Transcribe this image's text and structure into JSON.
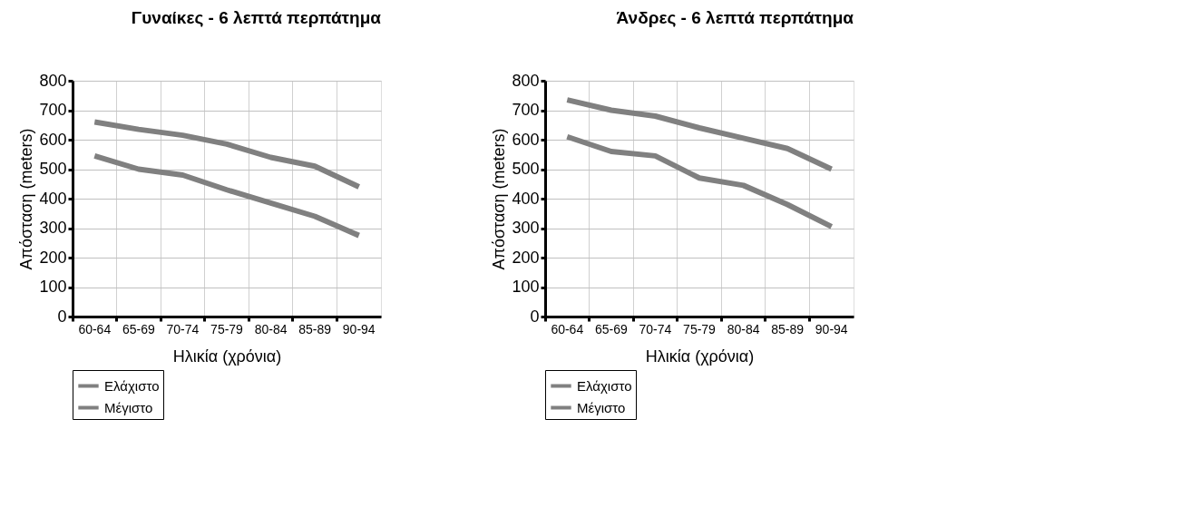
{
  "chart_data": [
    {
      "type": "line",
      "title": "Γυναίκες - 6 λεπτά περπάτημα",
      "xlabel": "Ηλικία (χρόνια)",
      "ylabel": "Απόσταση (meters)",
      "categories": [
        "60-64",
        "65-69",
        "70-74",
        "75-79",
        "80-84",
        "85-89",
        "90-94"
      ],
      "series": [
        {
          "name": "Ελάχιστο",
          "color": "#808080",
          "values": [
            545,
            500,
            480,
            430,
            385,
            340,
            275
          ]
        },
        {
          "name": "Μέγιστο",
          "color": "#808080",
          "values": [
            660,
            635,
            615,
            585,
            540,
            510,
            440
          ]
        }
      ],
      "ylim": [
        0,
        800
      ],
      "yticks": [
        0,
        100,
        200,
        300,
        400,
        500,
        600,
        700,
        800
      ],
      "grid": true,
      "legend": "bottom left",
      "marker": "none",
      "line_style": "solid"
    },
    {
      "type": "line",
      "title": "Άνδρες - 6 λεπτά περπάτημα",
      "xlabel": "Ηλικία (χρόνια)",
      "ylabel": "Απόσταση (meters)",
      "categories": [
        "60-64",
        "65-69",
        "70-74",
        "75-79",
        "80-84",
        "85-89",
        "90-94"
      ],
      "series": [
        {
          "name": "Ελάχιστο",
          "color": "#808080",
          "values": [
            610,
            560,
            545,
            470,
            445,
            380,
            305
          ]
        },
        {
          "name": "Μέγιστο",
          "color": "#808080",
          "values": [
            735,
            700,
            680,
            640,
            605,
            570,
            500
          ]
        }
      ],
      "ylim": [
        0,
        800
      ],
      "yticks": [
        0,
        100,
        200,
        300,
        400,
        500,
        600,
        700,
        800
      ],
      "grid": true,
      "legend": "bottom left",
      "marker": "none",
      "line_style": "solid"
    }
  ]
}
